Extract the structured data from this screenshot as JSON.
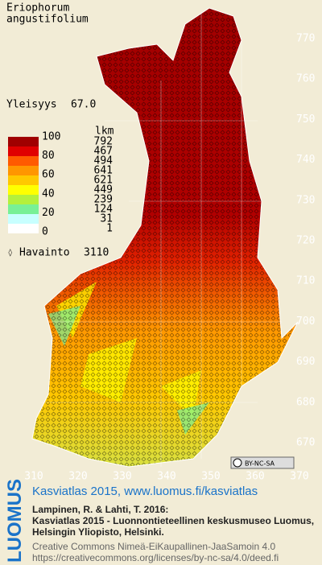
{
  "species": [
    "Eriophorum",
    "angustifolium"
  ],
  "frequency": {
    "label": "Yleisyys",
    "value": "67.0"
  },
  "legend": {
    "scale": [
      "100",
      "80",
      "60",
      "40",
      "20",
      "0"
    ],
    "count_header": "lkm",
    "counts": [
      "792",
      "467",
      "494",
      "641",
      "621",
      "449",
      "239",
      "124",
      "31",
      "1"
    ],
    "colors": [
      "#a00000",
      "#e00000",
      "#ff5a00",
      "#ff9600",
      "#ffc800",
      "#ffff00",
      "#b4f03c",
      "#78f096",
      "#c8ffff",
      "#ffffff"
    ]
  },
  "observations": {
    "marker": "◊",
    "label": "Havainto",
    "value": "3110"
  },
  "axes": {
    "y": [
      "770",
      "760",
      "750",
      "740",
      "730",
      "720",
      "710",
      "700",
      "690",
      "680",
      "670"
    ],
    "x": [
      "310",
      "320",
      "330",
      "340",
      "350",
      "360",
      "370"
    ]
  },
  "license_badge": "BY-NC-SA",
  "logo": "LUOMUS",
  "footer": {
    "title": "Kasviatlas 2015, www.luomus.fi/kasviatlas",
    "citation": [
      "Lampinen, R. & Lahti, T. 2016:",
      "Kasviatlas 2015 - Luonnontieteellinen keskusmuseo Luomus,",
      "Helsingin Yliopisto, Helsinki."
    ],
    "license": [
      "Creative Commons Nimeä-EiKaupallinen-JaaSamoin 4.0",
      "https://creativecommons.org/licenses/by-nc-sa/4.0/deed.fi"
    ]
  }
}
